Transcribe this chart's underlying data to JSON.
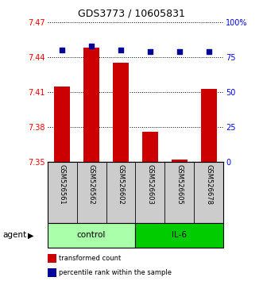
{
  "title": "GDS3773 / 10605831",
  "samples": [
    "GSM526561",
    "GSM526562",
    "GSM526602",
    "GSM526603",
    "GSM526605",
    "GSM526678"
  ],
  "groups": [
    "control",
    "control",
    "control",
    "IL-6",
    "IL-6",
    "IL-6"
  ],
  "transformed_counts": [
    7.415,
    7.448,
    7.435,
    7.376,
    7.352,
    7.413
  ],
  "percentile_ranks": [
    80,
    83,
    80,
    79,
    79,
    79
  ],
  "bar_bottom": 7.35,
  "ylim": [
    7.35,
    7.47
  ],
  "ylim_right": [
    0,
    100
  ],
  "yticks_left": [
    7.35,
    7.38,
    7.41,
    7.44,
    7.47
  ],
  "yticks_right": [
    0,
    25,
    50,
    75,
    100
  ],
  "ytick_labels_right": [
    "0",
    "25",
    "50",
    "75",
    "100%"
  ],
  "bar_color": "#cc0000",
  "dot_color": "#000099",
  "control_color": "#aaffaa",
  "il6_color": "#00cc00",
  "bg_color": "#ffffff",
  "plot_bg": "#ffffff",
  "xlabel_area_bg": "#cccccc",
  "control_label": "control",
  "il6_label": "IL-6",
  "agent_label": "agent",
  "legend_bar_label": "transformed count",
  "legend_dot_label": "percentile rank within the sample",
  "bar_width": 0.55
}
